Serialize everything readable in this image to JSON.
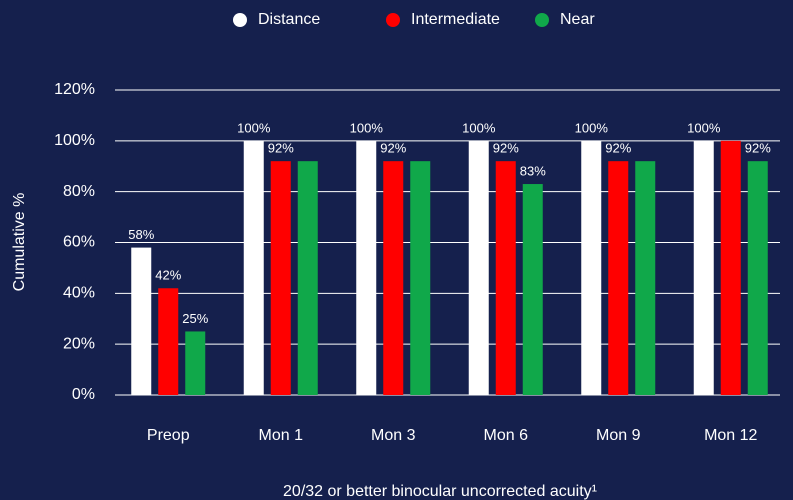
{
  "chart_data": {
    "type": "bar",
    "categories": [
      "Preop",
      "Mon 1",
      "Mon 3",
      "Mon 6",
      "Mon 9",
      "Mon 12"
    ],
    "series": [
      {
        "name": "Distance",
        "color": "#ffffff",
        "values": [
          58,
          100,
          100,
          100,
          100,
          100
        ],
        "value_labels": [
          "58%",
          "100%",
          "100%",
          "100%",
          "100%",
          "100%"
        ]
      },
      {
        "name": "Intermediate",
        "color": "#ff0000",
        "values": [
          42,
          92,
          92,
          92,
          92,
          100
        ],
        "value_labels": [
          "42%",
          "92%",
          "92%",
          "92%",
          "92%",
          null
        ]
      },
      {
        "name": "Near",
        "color": "#10a84a",
        "values": [
          25,
          92,
          92,
          83,
          92,
          92
        ],
        "value_labels": [
          "25%",
          null,
          null,
          "83%",
          null,
          "92%"
        ]
      }
    ],
    "ylabel": "Cumulative %",
    "xlabel": "20/32 or better binocular uncorrected acuity¹",
    "ylim": [
      0,
      120
    ],
    "yticks": [
      {
        "value": 0,
        "label": "0%"
      },
      {
        "value": 20,
        "label": "20%"
      },
      {
        "value": 40,
        "label": "40%"
      },
      {
        "value": 60,
        "label": "60%"
      },
      {
        "value": 80,
        "label": "80%"
      },
      {
        "value": 100,
        "label": "100%"
      },
      {
        "value": 120,
        "label": "120%"
      }
    ],
    "grid": true,
    "legend": "top"
  }
}
